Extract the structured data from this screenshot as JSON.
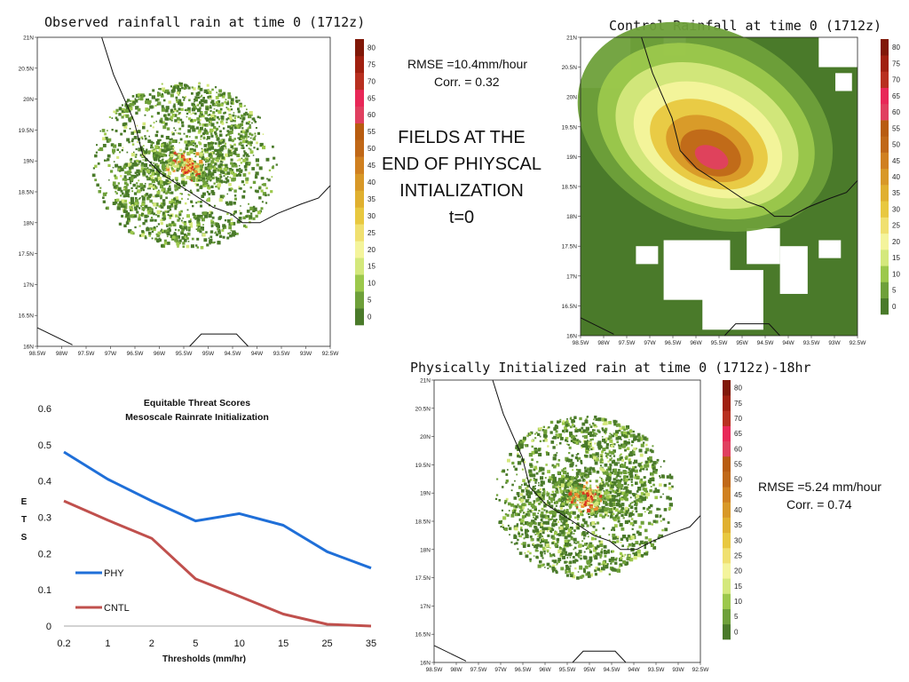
{
  "observed": {
    "title": "Observed rainfall rain at time 0 (1712z)",
    "lat_labels": [
      "21N",
      "20.5N",
      "20N",
      "19.5N",
      "19N",
      "18.5N",
      "18N",
      "17.5N",
      "17N",
      "16.5N",
      "16N"
    ],
    "lon_labels": [
      "98.5W",
      "98W",
      "97.5W",
      "97W",
      "96.5W",
      "96W",
      "95.5W",
      "95W",
      "94.5W",
      "94W",
      "93.5W",
      "93W",
      "92.5W"
    ]
  },
  "control": {
    "title": "Control Rainfall at time 0 (1712z)",
    "lat_labels": [
      "21N",
      "20.5N",
      "20N",
      "19.5N",
      "19N",
      "18.5N",
      "18N",
      "17.5N",
      "17N",
      "16.5N",
      "16N"
    ],
    "lon_labels": [
      "98.5W",
      "98W",
      "97.5W",
      "97W",
      "96.5W",
      "96W",
      "95.5W",
      "95W",
      "94.5W",
      "94W",
      "93.5W",
      "93W",
      "92.5W"
    ]
  },
  "physical": {
    "title": "Physically Initialized rain at time 0 (1712z)-18hr",
    "lat_labels": [
      "21N",
      "20.5N",
      "20N",
      "19.5N",
      "19N",
      "18.5N",
      "18N",
      "17.5N",
      "17N",
      "16.5N",
      "16N"
    ],
    "lon_labels": [
      "98.5W",
      "98W",
      "97.5W",
      "97W",
      "96.5W",
      "96W",
      "95.5W",
      "95W",
      "94.5W",
      "94W",
      "93.5W",
      "93W",
      "92.5W"
    ]
  },
  "colorbar": {
    "labels": [
      "0",
      "5",
      "10",
      "15",
      "20",
      "25",
      "30",
      "35",
      "40",
      "45",
      "50",
      "55",
      "60",
      "65",
      "70",
      "75",
      "80"
    ],
    "colors": [
      "#4a7a2a",
      "#6ea03a",
      "#9cc84c",
      "#d4e87c",
      "#f4f49c",
      "#f0e070",
      "#e8c840",
      "#e0b030",
      "#d89828",
      "#d08020",
      "#c06818",
      "#b85c10",
      "#e04060",
      "#e82858",
      "#b83020",
      "#a02010",
      "#801808"
    ]
  },
  "stats_control": {
    "rmse": "RMSE =10.4mm/hour",
    "corr": "Corr.   = 0.32"
  },
  "stats_physical": {
    "rmse": "RMSE =5.24 mm/hour",
    "corr": "Corr.   = 0.74"
  },
  "center_text": {
    "line1": "FIELDS AT THE",
    "line2": "END OF PHIYSCAL",
    "line3": "INTIALIZATION",
    "line4": "t=0"
  },
  "chart_data": {
    "type": "line",
    "title": "Equitable Threat Scores",
    "subtitle": "Mesoscale Rainrate Initialization",
    "xlabel": "Thresholds (mm/hr)",
    "ylabel": "E T S",
    "categories": [
      "0.2",
      "1",
      "2",
      "5",
      "10",
      "15",
      "25",
      "35"
    ],
    "ylim": [
      0,
      0.6
    ],
    "yticks": [
      "0",
      "0.1",
      "0.2",
      "0.3",
      "0.4",
      "0.5",
      "0.6"
    ],
    "series": [
      {
        "name": "PHY",
        "color": "#1f6fd8",
        "values": [
          0.48,
          0.405,
          0.345,
          0.29,
          0.31,
          0.278,
          0.205,
          0.16
        ]
      },
      {
        "name": "CNTL",
        "color": "#c0504d",
        "values": [
          0.345,
          0.292,
          0.242,
          0.13,
          0.082,
          0.033,
          0.005,
          0.0
        ]
      }
    ]
  }
}
